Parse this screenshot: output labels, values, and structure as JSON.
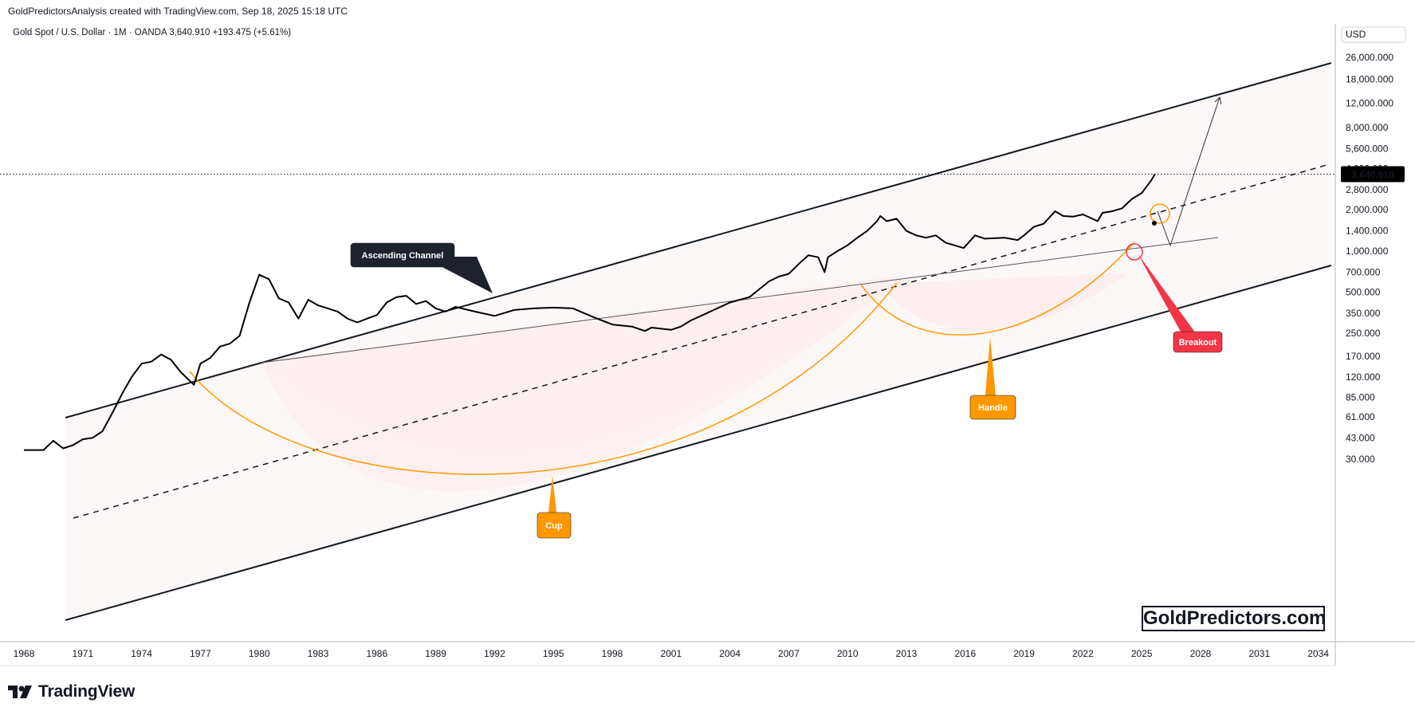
{
  "header": {
    "credit": "GoldPredictorsAnalysis created with TradingView.com, Sep 18, 2025 15:18 UTC",
    "symbol": "Gold Spot / U.S. Dollar · 1M · OANDA",
    "price": "3,640.910",
    "change": "+193.475 (+5.61%)"
  },
  "colors": {
    "price_line": "#000000",
    "cup_arc": "#ff9800",
    "cup_fill": "#fdeef0",
    "channel": "#131722",
    "callout_orange": "#ff9800",
    "callout_red": "#f23645",
    "callout_dark": "#1e222d",
    "axis_text": "#131722"
  },
  "branding": {
    "logo_icon": "tradingview-logo-icon",
    "logo_text": "TradingView",
    "watermark": "GoldPredictors.com"
  },
  "chart_data": {
    "type": "line",
    "title": "",
    "xlabel": "",
    "ylabel": "",
    "currency": "USD",
    "y_scale": "log",
    "ylim": [
      30,
      26000
    ],
    "xlim": [
      1968,
      2035
    ],
    "grid": false,
    "x_ticks": [
      "1968",
      "1971",
      "1974",
      "1977",
      "1980",
      "1983",
      "1986",
      "1989",
      "1992",
      "1995",
      "1998",
      "2001",
      "2004",
      "2007",
      "2010",
      "2013",
      "2016",
      "2019",
      "2022",
      "2025",
      "2028",
      "2031",
      "2034"
    ],
    "y_ticks": [
      "26,000.000",
      "18,000.000",
      "12,000.000",
      "8,000.000",
      "5,600.000",
      "4,000.000",
      "2,800.000",
      "2,000.000",
      "1,400.000",
      "1,000.000",
      "700.000",
      "500.000",
      "350.000",
      "250.000",
      "170.000",
      "120.000",
      "85.000",
      "61.000",
      "43.000",
      "30.000"
    ],
    "last_price_label": "3,640.910",
    "last_price": 3640.91,
    "series": [
      {
        "name": "",
        "x": [
          1968.0,
          1969.0,
          1969.5,
          1970.0,
          1970.5,
          1971.0,
          1971.5,
          1972.0,
          1972.5,
          1973.0,
          1973.5,
          1974.0,
          1974.5,
          1975.0,
          1975.5,
          1976.0,
          1976.67,
          1977.0,
          1977.5,
          1978.0,
          1978.5,
          1979.0,
          1979.5,
          1980.0,
          1980.5,
          1981.0,
          1981.5,
          1982.0,
          1982.5,
          1983.0,
          1983.5,
          1984.0,
          1984.5,
          1985.0,
          1985.5,
          1986.0,
          1986.5,
          1987.0,
          1987.5,
          1988.0,
          1988.5,
          1989.0,
          1989.5,
          1990.0,
          1991.0,
          1992.0,
          1993.0,
          1994.0,
          1995.0,
          1996.0,
          1997.0,
          1998.0,
          1999.0,
          1999.67,
          2000.0,
          2001.0,
          2001.5,
          2002.0,
          2003.0,
          2004.0,
          2005.0,
          2006.0,
          2006.5,
          2007.0,
          2007.5,
          2008.0,
          2008.5,
          2008.83,
          2009.0,
          2009.5,
          2010.0,
          2010.5,
          2011.0,
          2011.5,
          2011.67,
          2012.0,
          2012.5,
          2013.0,
          2013.5,
          2014.0,
          2014.5,
          2015.0,
          2015.92,
          2016.5,
          2017.0,
          2018.0,
          2018.67,
          2019.0,
          2019.5,
          2020.0,
          2020.58,
          2021.0,
          2021.5,
          2022.0,
          2022.75,
          2023.0,
          2023.5,
          2024.0,
          2024.5,
          2025.0,
          2025.5,
          2025.67
        ],
        "values": [
          35,
          35,
          41,
          36,
          38,
          42,
          43,
          48,
          65,
          90,
          120,
          150,
          155,
          175,
          160,
          130,
          105,
          150,
          165,
          200,
          210,
          240,
          420,
          670,
          620,
          450,
          420,
          320,
          440,
          400,
          380,
          360,
          320,
          300,
          320,
          340,
          420,
          460,
          470,
          410,
          430,
          380,
          360,
          390,
          360,
          335,
          370,
          380,
          385,
          380,
          330,
          290,
          280,
          260,
          275,
          265,
          280,
          310,
          360,
          420,
          460,
          600,
          650,
          680,
          800,
          930,
          900,
          700,
          900,
          1000,
          1100,
          1250,
          1400,
          1650,
          1800,
          1650,
          1720,
          1400,
          1300,
          1250,
          1300,
          1150,
          1050,
          1300,
          1230,
          1250,
          1200,
          1300,
          1500,
          1580,
          1950,
          1800,
          1780,
          1850,
          1650,
          1900,
          1950,
          2050,
          2400,
          2650,
          3300,
          3640
        ]
      }
    ],
    "annotations": [
      {
        "text": "Ascending Channel",
        "kind": "label"
      },
      {
        "text": "Cup",
        "kind": "callout"
      },
      {
        "text": "Handle",
        "kind": "callout"
      },
      {
        "text": "Breakout",
        "kind": "callout"
      }
    ]
  }
}
